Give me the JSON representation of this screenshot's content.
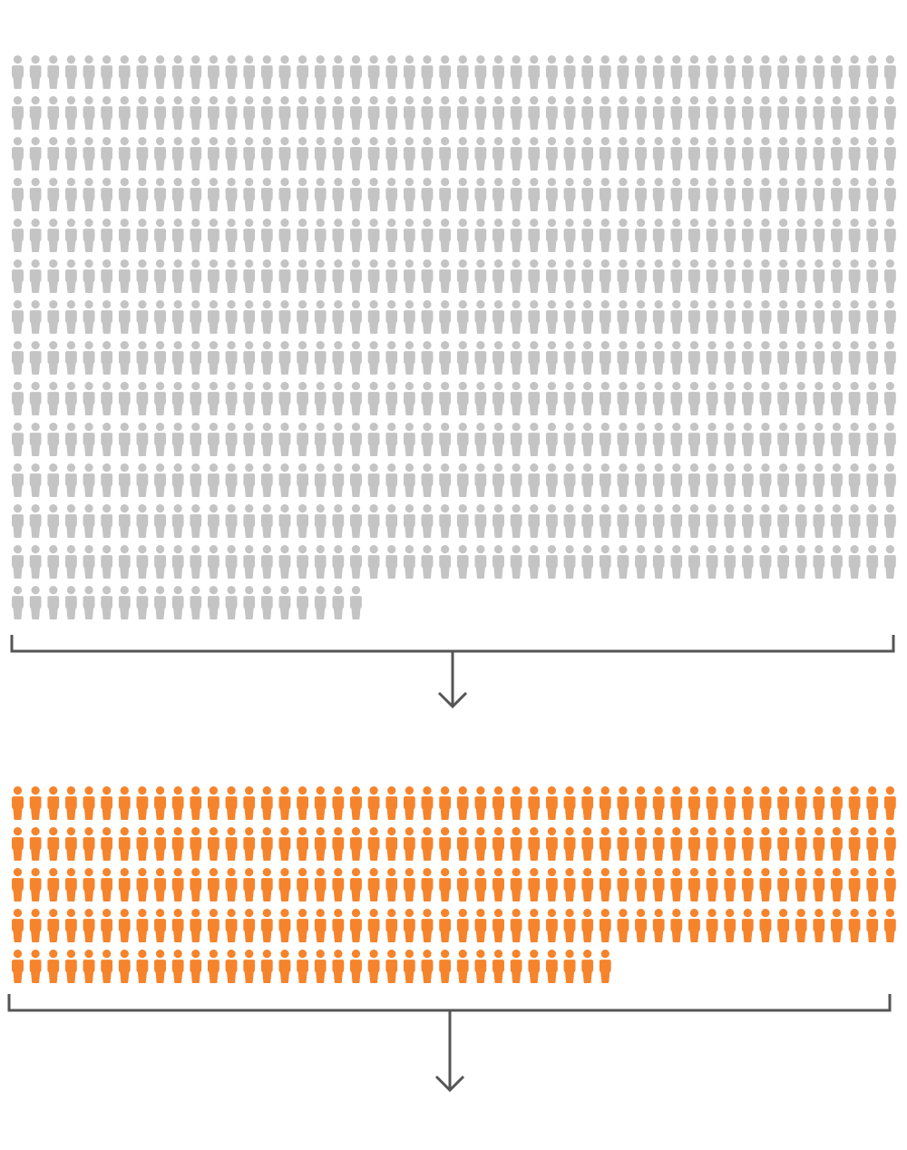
{
  "chart_data": {
    "type": "pictogram",
    "title": "",
    "unit": "person",
    "groups": [
      {
        "name": "",
        "count": 670,
        "per_row": 50,
        "color": "#c4c4c4"
      },
      {
        "name": "",
        "count": 234,
        "per_row": 50,
        "color": "#f5842c"
      }
    ],
    "legend": "none",
    "grid": false
  },
  "colors": {
    "bracket": "#555555",
    "background": "#ffffff"
  }
}
